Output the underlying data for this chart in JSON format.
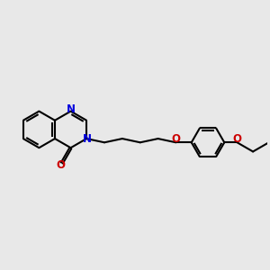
{
  "bg_color": "#e8e8e8",
  "bond_color": "#000000",
  "N_color": "#0000dd",
  "O_color": "#cc0000",
  "line_width": 1.5,
  "figsize": [
    3.0,
    3.0
  ],
  "dpi": 100,
  "xlim": [
    -4.0,
    10.5
  ],
  "ylim": [
    -3.5,
    3.5
  ]
}
